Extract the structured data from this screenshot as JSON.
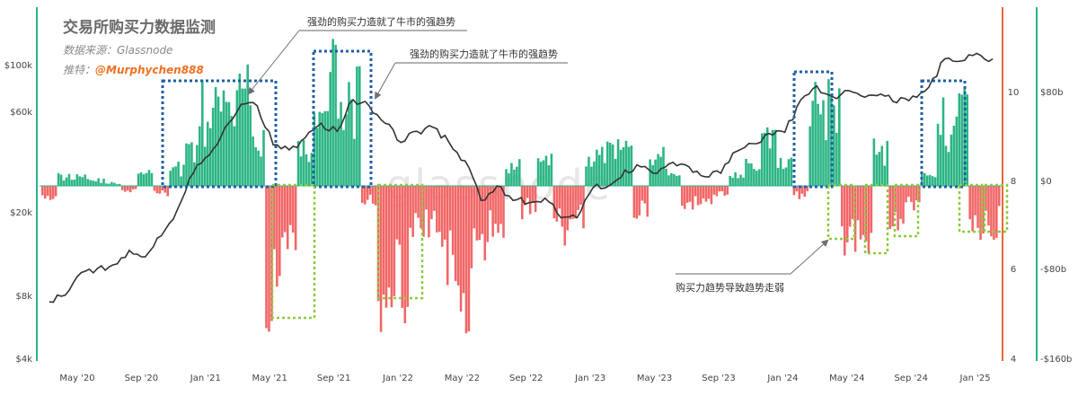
{
  "title": "交易所购买力数据监测",
  "source_line": "数据来源：Glassnode",
  "recommend_label": "推特：",
  "recommend_handle": "@Murphychen888",
  "watermark": "glassnode",
  "annotations": {
    "strong_1": "强劲的购买力造就了牛市的强趋势",
    "strong_2": "强劲的购买力造就了牛市的强趋势",
    "weak": "购买力趋势导致趋势走弱"
  },
  "colors": {
    "positive": "#2bb583",
    "negative": "#f26666",
    "price": "#333333",
    "strong_box": "#1f5fa8",
    "weak_box": "#8ccc3c",
    "left_rule": "#2bb583",
    "right_rule_orange": "#e8663a",
    "right_rule_green": "#2bb583"
  },
  "chart_data": {
    "type": "bar",
    "x_tick_labels": [
      "May '20",
      "Sep '20",
      "Jan '21",
      "May '21",
      "Sep '21",
      "Jan '22",
      "May '22",
      "Sep '22",
      "Jan '23",
      "May '23",
      "Sep '23",
      "Jan '24",
      "May '24",
      "Sep '24",
      "Jan '25"
    ],
    "left_axis_labels": [
      "$100k",
      "$60k",
      "$20k",
      "$8k",
      "$4k"
    ],
    "middle_axis_labels": [
      "10",
      "8",
      "6",
      "4"
    ],
    "right_axis_labels": [
      "$80b",
      "$0",
      "-$80b",
      "-$160b"
    ],
    "price_scale": "log",
    "y_range_billions": [
      -160,
      100
    ],
    "price_range_usd": [
      4000,
      130000
    ],
    "bar_months": [
      "2020-03",
      "2020-04",
      "2020-05",
      "2020-06",
      "2020-07",
      "2020-08",
      "2020-09",
      "2020-10",
      "2020-11",
      "2020-12",
      "2021-01",
      "2021-02",
      "2021-03",
      "2021-04",
      "2021-05",
      "2021-06",
      "2021-07",
      "2021-08",
      "2021-09",
      "2021-10",
      "2021-11",
      "2021-12",
      "2022-01",
      "2022-02",
      "2022-03",
      "2022-04",
      "2022-05",
      "2022-06",
      "2022-07",
      "2022-08",
      "2022-09",
      "2022-10",
      "2022-11",
      "2022-12",
      "2023-01",
      "2023-02",
      "2023-03",
      "2023-04",
      "2023-05",
      "2023-06",
      "2023-07",
      "2023-08",
      "2023-09",
      "2023-10",
      "2023-11",
      "2023-12",
      "2024-01",
      "2024-02",
      "2024-03",
      "2024-04",
      "2024-05",
      "2024-06",
      "2024-07",
      "2024-08",
      "2024-09",
      "2024-10",
      "2024-11",
      "2024-12",
      "2025-01",
      "2025-02"
    ],
    "net_buying_power_billions": [
      -20,
      10,
      12,
      6,
      3,
      -5,
      12,
      -8,
      20,
      45,
      80,
      75,
      95,
      60,
      -120,
      -60,
      35,
      85,
      110,
      95,
      -15,
      -120,
      -105,
      -50,
      -40,
      -80,
      -110,
      -90,
      -40,
      20,
      -25,
      25,
      -45,
      -40,
      30,
      40,
      35,
      -25,
      30,
      15,
      -20,
      -15,
      -10,
      15,
      25,
      45,
      25,
      -10,
      100,
      80,
      -55,
      -60,
      40,
      -45,
      -20,
      10,
      70,
      90,
      -45,
      -40
    ],
    "series": [
      {
        "price_months": [
          "2020-03",
          "2020-04",
          "2020-05",
          "2020-06",
          "2020-07",
          "2020-08",
          "2020-09",
          "2020-10",
          "2020-11",
          "2020-12",
          "2021-01",
          "2021-02",
          "2021-03",
          "2021-04",
          "2021-05",
          "2021-06",
          "2021-07",
          "2021-08",
          "2021-09",
          "2021-10",
          "2021-11",
          "2021-12",
          "2022-01",
          "2022-02",
          "2022-03",
          "2022-04",
          "2022-05",
          "2022-06",
          "2022-07",
          "2022-08",
          "2022-09",
          "2022-10",
          "2022-11",
          "2022-12",
          "2023-01",
          "2023-02",
          "2023-03",
          "2023-04",
          "2023-05",
          "2023-06",
          "2023-07",
          "2023-08",
          "2023-09",
          "2023-10",
          "2023-11",
          "2023-12",
          "2024-01",
          "2024-02",
          "2024-03",
          "2024-04",
          "2024-05",
          "2024-06",
          "2024-07",
          "2024-08",
          "2024-09",
          "2024-10",
          "2024-11",
          "2024-12",
          "2025-01",
          "2025-02"
        ],
        "price_usd": [
          6500,
          7000,
          9000,
          9400,
          9800,
          11500,
          10700,
          13500,
          18000,
          27000,
          33000,
          45000,
          58000,
          57000,
          37000,
          35000,
          40000,
          47000,
          43000,
          61000,
          57000,
          47000,
          38000,
          43000,
          45000,
          38000,
          31000,
          20000,
          23500,
          20000,
          19500,
          20500,
          16500,
          16500,
          23000,
          23500,
          28000,
          29000,
          27000,
          30500,
          29000,
          26000,
          27000,
          34500,
          37500,
          42000,
          42500,
          61000,
          71000,
          63000,
          67500,
          62700,
          65000,
          59000,
          63500,
          70000,
          96000,
          93500,
          102000,
          96000
        ]
      }
    ]
  }
}
